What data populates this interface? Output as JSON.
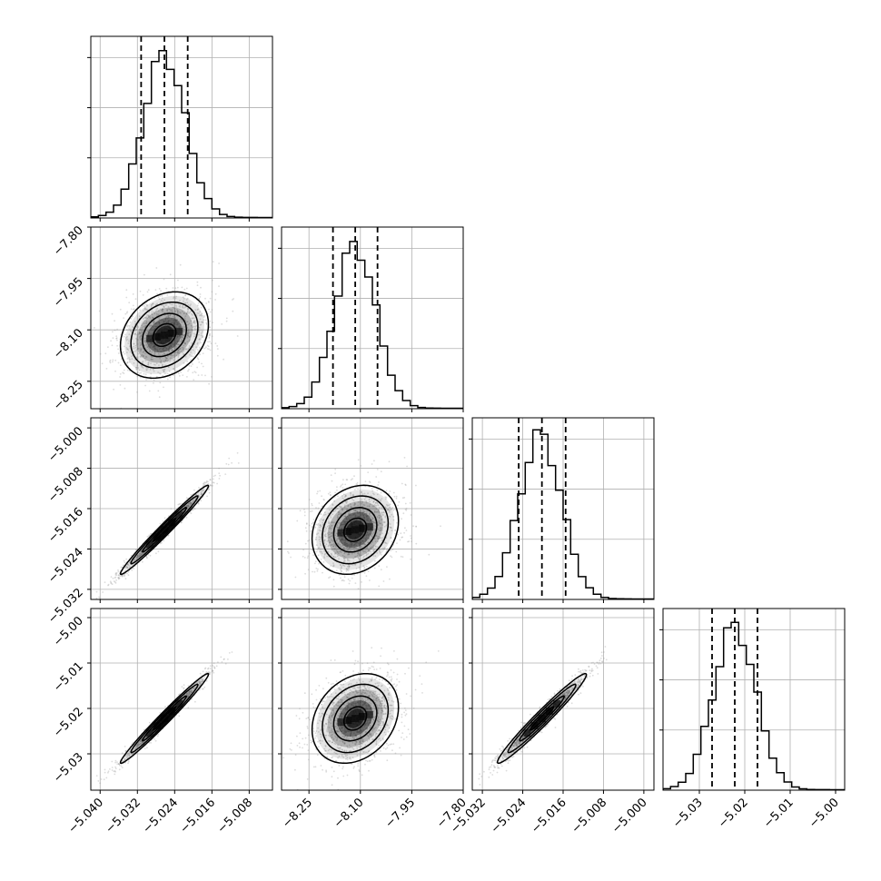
{
  "chart_data": {
    "type": "corner",
    "grid": true,
    "colors": {
      "hist": "#000000",
      "scatter": "#9a9a9a",
      "contour": "#000000",
      "grid": "#b0b0b0",
      "density": "#000000"
    },
    "quantile_lines": "dashed",
    "variables": [
      {
        "range": [
          -5.042,
          -5.003
        ],
        "ticks": [
          -5.04,
          -5.032,
          -5.024,
          -5.016,
          -5.008
        ],
        "tick_labels": [
          "−5.040",
          "−5.032",
          "−5.024",
          "−5.016",
          "−5.008"
        ],
        "quantiles": [
          -5.0312,
          -5.0262,
          -5.0212
        ],
        "hist_peak": -5.0262,
        "hist_sd": 0.0045
      },
      {
        "range": [
          -8.33,
          -7.8
        ],
        "ticks": [
          -8.25,
          -8.1,
          -7.95,
          -7.8
        ],
        "tick_labels": [
          "−8.25",
          "−8.10",
          "−7.95",
          "−7.80"
        ],
        "quantiles": [
          -8.18,
          -8.115,
          -8.05
        ],
        "hist_peak": -8.115,
        "hist_sd": 0.06
      },
      {
        "range": [
          -5.034,
          -4.998
        ],
        "ticks": [
          -5.032,
          -5.024,
          -5.016,
          -5.008,
          -5.0
        ],
        "tick_labels": [
          "−5.032",
          "−5.024",
          "−5.016",
          "−5.008",
          "−5.000"
        ],
        "quantiles": [
          -5.0248,
          -5.0202,
          -5.0155
        ],
        "hist_peak": -5.0205,
        "hist_sd": 0.0042
      },
      {
        "range": [
          -5.038,
          -4.998
        ],
        "ticks": [
          -5.03,
          -5.02,
          -5.01,
          -5.0
        ],
        "tick_labels": [
          "−5.03",
          "−5.02",
          "−5.01",
          "−5.00"
        ],
        "quantiles": [
          -5.0272,
          -5.0222,
          -5.0172
        ],
        "hist_peak": -5.0222,
        "hist_sd": 0.0047
      }
    ],
    "pairs": [
      {
        "row": 1,
        "col": 0,
        "center": [
          -5.0262,
          -8.115
        ],
        "sd": [
          0.0045,
          0.06
        ],
        "rho": 0.25
      },
      {
        "row": 2,
        "col": 0,
        "center": [
          -5.0262,
          -5.0202
        ],
        "sd": [
          0.0045,
          0.0042
        ],
        "rho": 0.985
      },
      {
        "row": 2,
        "col": 1,
        "center": [
          -8.115,
          -5.0202
        ],
        "sd": [
          0.06,
          0.0042
        ],
        "rho": 0.2
      },
      {
        "row": 3,
        "col": 0,
        "center": [
          -5.0262,
          -5.0222
        ],
        "sd": [
          0.0045,
          0.0047
        ],
        "rho": 0.985
      },
      {
        "row": 3,
        "col": 1,
        "center": [
          -8.115,
          -5.0222
        ],
        "sd": [
          0.06,
          0.0047
        ],
        "rho": 0.25
      },
      {
        "row": 3,
        "col": 2,
        "center": [
          -5.0202,
          -5.0222
        ],
        "sd": [
          0.0042,
          0.0047
        ],
        "rho": 0.975
      }
    ]
  }
}
